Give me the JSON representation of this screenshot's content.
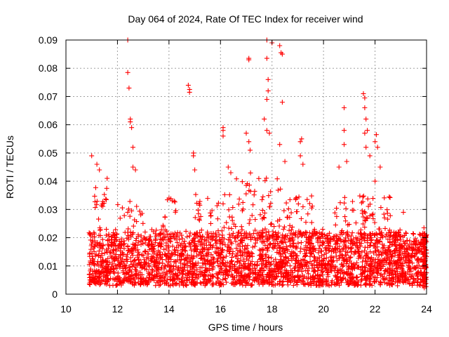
{
  "chart_data": {
    "type": "scatter",
    "title": "Day 064 of 2024, Rate Of TEC Index for receiver wind",
    "xlabel": "GPS time / hours",
    "ylabel": "ROTI / TECUs",
    "xlim": [
      10,
      24
    ],
    "ylim": [
      0,
      0.09
    ],
    "x_ticks": [
      10,
      12,
      14,
      16,
      18,
      20,
      22,
      24
    ],
    "y_ticks": [
      0,
      0.01,
      0.02,
      0.03,
      0.04,
      0.05,
      0.06,
      0.07,
      0.08,
      0.09
    ],
    "x_tick_labels": [
      "10",
      "12",
      "14",
      "16",
      "18",
      "20",
      "22",
      "24"
    ],
    "y_tick_labels": [
      "0",
      "0.01",
      "0.02",
      "0.03",
      "0.04",
      "0.05",
      "0.06",
      "0.07",
      "0.08",
      "0.09"
    ],
    "grid": true,
    "marker": "+",
    "marker_color": "#ff0000",
    "series": [
      {
        "name": "ROTI",
        "points": [
          [
            11.0,
            0.049
          ],
          [
            11.2,
            0.046
          ],
          [
            11.3,
            0.044
          ],
          [
            11.6,
            0.041
          ],
          [
            12.4,
            0.09
          ],
          [
            12.4,
            0.0785
          ],
          [
            12.45,
            0.073
          ],
          [
            12.5,
            0.062
          ],
          [
            12.5,
            0.061
          ],
          [
            12.55,
            0.059
          ],
          [
            12.6,
            0.052
          ],
          [
            12.6,
            0.045
          ],
          [
            12.7,
            0.044
          ],
          [
            14.0,
            0.034
          ],
          [
            14.2,
            0.033
          ],
          [
            14.75,
            0.074
          ],
          [
            14.8,
            0.0725
          ],
          [
            14.8,
            0.0715
          ],
          [
            14.95,
            0.05
          ],
          [
            14.95,
            0.049
          ],
          [
            15.0,
            0.044
          ],
          [
            16.1,
            0.059
          ],
          [
            16.1,
            0.058
          ],
          [
            16.1,
            0.056
          ],
          [
            16.3,
            0.045
          ],
          [
            16.4,
            0.043
          ],
          [
            17.0,
            0.057
          ],
          [
            17.1,
            0.0835
          ],
          [
            17.1,
            0.083
          ],
          [
            17.1,
            0.054
          ],
          [
            17.15,
            0.051
          ],
          [
            17.8,
            0.09
          ],
          [
            17.8,
            0.0835
          ],
          [
            17.85,
            0.076
          ],
          [
            17.85,
            0.072
          ],
          [
            17.8,
            0.069
          ],
          [
            17.7,
            0.062
          ],
          [
            17.8,
            0.058
          ],
          [
            17.9,
            0.057
          ],
          [
            18.0,
            0.089
          ],
          [
            18.3,
            0.088
          ],
          [
            18.35,
            0.0855
          ],
          [
            18.4,
            0.085
          ],
          [
            18.4,
            0.068
          ],
          [
            18.3,
            0.053
          ],
          [
            18.5,
            0.047
          ],
          [
            19.15,
            0.055
          ],
          [
            19.1,
            0.054
          ],
          [
            19.1,
            0.049
          ],
          [
            19.2,
            0.046
          ],
          [
            20.6,
            0.045
          ],
          [
            20.8,
            0.066
          ],
          [
            20.8,
            0.058
          ],
          [
            20.8,
            0.053
          ],
          [
            20.9,
            0.047
          ],
          [
            21.55,
            0.071
          ],
          [
            21.6,
            0.0695
          ],
          [
            21.6,
            0.066
          ],
          [
            21.65,
            0.062
          ],
          [
            21.7,
            0.058
          ],
          [
            21.6,
            0.057
          ],
          [
            21.65,
            0.052
          ],
          [
            21.8,
            0.049
          ],
          [
            22.0,
            0.054
          ],
          [
            22.05,
            0.0565
          ],
          [
            22.1,
            0.052
          ],
          [
            22.2,
            0.045
          ],
          [
            22.0,
            0.04
          ],
          [
            23.1,
            0.029
          ],
          [
            23.9,
            0.0235
          ],
          [
            24.0,
            0.021
          ]
        ]
      }
    ],
    "density_profile": {
      "description": "Dense band of ROTI values between ~0.003 and ~0.03 TECU/min from 10.9 h to 24 h",
      "x_range": [
        10.9,
        24.0
      ],
      "typical_min": 0.003,
      "typical_max": 0.03
    }
  }
}
